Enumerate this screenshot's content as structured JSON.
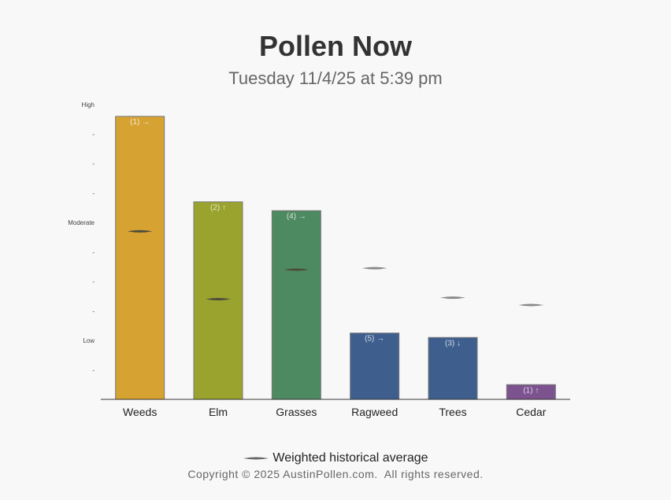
{
  "header": {
    "title": "Pollen Now",
    "subtitle": "Tuesday 11/4/25 at 5:39 pm"
  },
  "legend": {
    "label": "Weighted historical average"
  },
  "footer": {
    "copyright": "Copyright © 2025 AustinPollen.com.  All rights reserved."
  },
  "chart_data": {
    "type": "bar",
    "title": "",
    "xlabel": "",
    "ylabel": "",
    "ylim": [
      0,
      10
    ],
    "y_ticks": [
      {
        "value": 10,
        "label": "High"
      },
      {
        "value": 9,
        "label": "-"
      },
      {
        "value": 8,
        "label": "-"
      },
      {
        "value": 7,
        "label": "-"
      },
      {
        "value": 6,
        "label": "Moderate"
      },
      {
        "value": 5,
        "label": "-"
      },
      {
        "value": 4,
        "label": "-"
      },
      {
        "value": 3,
        "label": "-"
      },
      {
        "value": 2,
        "label": "Low"
      },
      {
        "value": 1,
        "label": "-"
      }
    ],
    "categories": [
      "Weeds",
      "Elm",
      "Grasses",
      "Ragweed",
      "Trees",
      "Cedar"
    ],
    "values": [
      9.6,
      6.7,
      6.4,
      2.25,
      2.1,
      0.5
    ],
    "historical_average": [
      5.7,
      3.4,
      4.4,
      4.45,
      3.45,
      3.2
    ],
    "bar_labels": [
      "(1) →",
      "(2) ↑",
      "(4) →",
      "(5) →",
      "(3) ↓",
      "(1) ↑"
    ],
    "colors": [
      "#d6a232",
      "#99a32e",
      "#4e8a61",
      "#3e5f8e",
      "#3e5f8e",
      "#7c528f"
    ],
    "grid": false,
    "legend_position": "bottom"
  }
}
